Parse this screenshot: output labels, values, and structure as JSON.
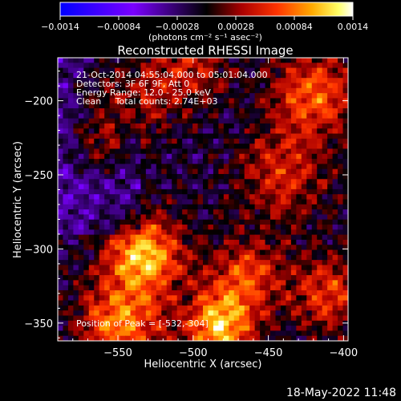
{
  "colorbar": {
    "ticks": [
      "-0.0014",
      "-0.00084",
      "-0.00028",
      "0.00028",
      "0.00084",
      "0.0014"
    ],
    "tick_values": [
      -0.0014,
      -0.00084,
      -0.00028,
      0.00028,
      0.00084,
      0.0014
    ],
    "range": [
      -0.0014,
      0.0014
    ],
    "units": "(photons cm⁻² s⁻¹ asec⁻²)",
    "colors": [
      "#0000ff",
      "#8800ff",
      "#000000",
      "#880000",
      "#ff0000",
      "#ff9900",
      "#ffff00",
      "#ffffff"
    ]
  },
  "chart_data": {
    "type": "heatmap",
    "title": "Reconstructed RHESSI Image",
    "xlabel": "Heliocentric X (arcsec)",
    "ylabel": "Heliocentric Y (arcsec)",
    "xlim": [
      -590,
      -397
    ],
    "ylim": [
      -362,
      -171
    ],
    "xticks": [
      -550,
      -500,
      -450,
      -400
    ],
    "yticks": [
      -350,
      -300,
      -250,
      -200
    ],
    "xtick_labels": [
      "−550",
      "−500",
      "−450",
      "−400"
    ],
    "ytick_labels": [
      "−350",
      "−300",
      "−250",
      "−200"
    ],
    "value_range": [
      -0.0014,
      0.0014
    ],
    "peak": {
      "x": -532,
      "y": -304
    },
    "annotations": [
      "21-Oct-2014 04:55:04.000 to 05:01:04.000",
      "Detectors: 3F 6F 9F, Att 0",
      "Energy Range: 12.0 - 25.0 keV",
      "Clean     Total counts: 2.74E+03"
    ],
    "peak_label": "Position of Peak = [-532,-304]"
  },
  "footer": {
    "timestamp": "18-May-2022 11:48"
  }
}
